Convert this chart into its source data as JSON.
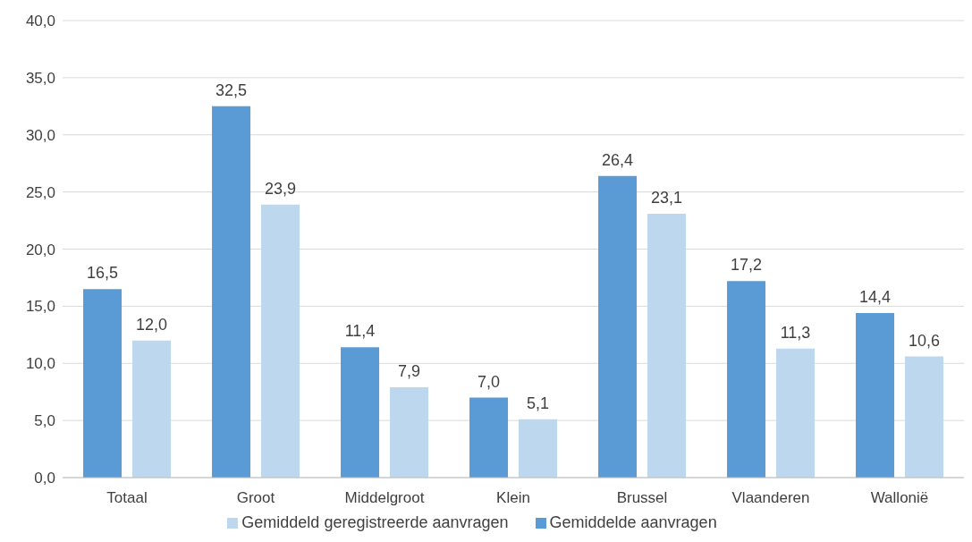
{
  "chart_data": {
    "type": "bar",
    "categories": [
      "Totaal",
      "Groot",
      "Middelgroot",
      "Klein",
      "Brussel",
      "Vlaanderen",
      "Wallonië"
    ],
    "series": [
      {
        "name": "Gemiddelde aanvragen",
        "color": "#5b9bd5",
        "values": [
          16.5,
          32.5,
          11.4,
          7.0,
          26.4,
          17.2,
          14.4
        ],
        "value_labels": [
          "16,5",
          "32,5",
          "11,4",
          "7,0",
          "26,4",
          "17,2",
          "14,4"
        ]
      },
      {
        "name": "Gemiddeld geregistreerde aanvragen",
        "color": "#bdd7ee",
        "values": [
          12.0,
          23.9,
          7.9,
          5.1,
          23.1,
          11.3,
          10.6
        ],
        "value_labels": [
          "12,0",
          "23,9",
          "7,9",
          "5,1",
          "23,1",
          "11,3",
          "10,6"
        ]
      }
    ],
    "ylim": [
      0,
      40
    ],
    "yticks": [
      {
        "value": 0,
        "label": "0,0"
      },
      {
        "value": 5,
        "label": "5,0"
      },
      {
        "value": 10,
        "label": "10,0"
      },
      {
        "value": 15,
        "label": "15,0"
      },
      {
        "value": 20,
        "label": "20,0"
      },
      {
        "value": 25,
        "label": "25,0"
      },
      {
        "value": 30,
        "label": "30,0"
      },
      {
        "value": 35,
        "label": "35,0"
      },
      {
        "value": 40,
        "label": "40,0"
      }
    ],
    "grid": "y",
    "legend": "bottom"
  }
}
